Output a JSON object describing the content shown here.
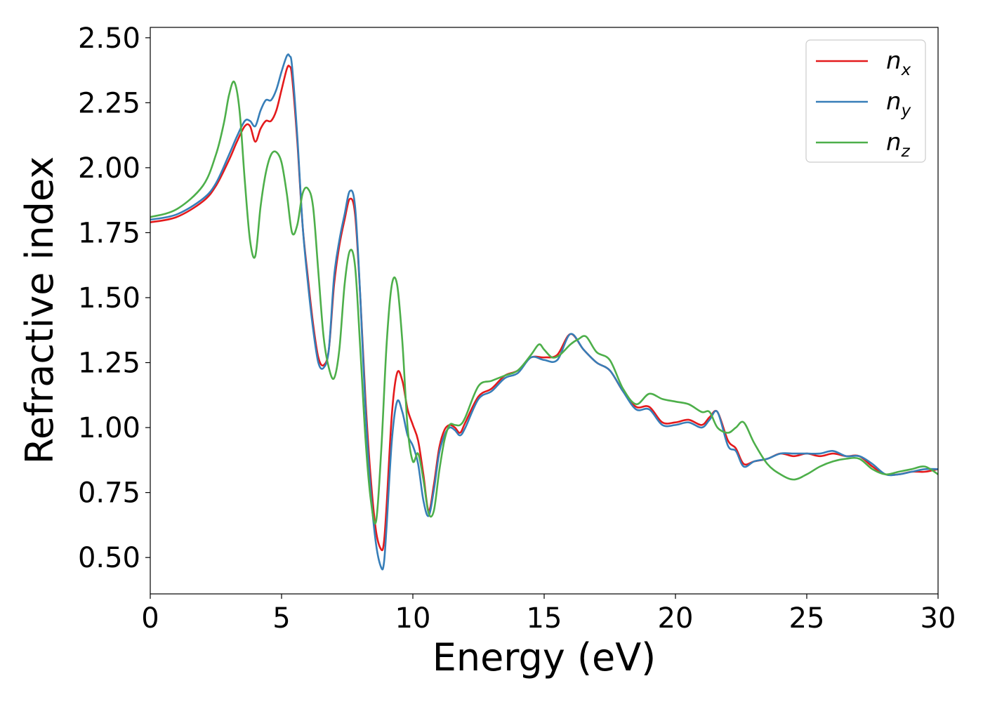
{
  "chart_data": {
    "type": "line",
    "xlabel": "Energy (eV)",
    "ylabel": "Refractive index",
    "xlim": [
      0,
      30
    ],
    "ylim": [
      0.36,
      2.54
    ],
    "xticks": [
      0,
      5,
      10,
      15,
      20,
      25,
      30
    ],
    "xtick_labels": [
      "0",
      "5",
      "10",
      "15",
      "20",
      "25",
      "30"
    ],
    "yticks": [
      0.5,
      0.75,
      1.0,
      1.25,
      1.5,
      1.75,
      2.0,
      2.25,
      2.5
    ],
    "ytick_labels": [
      "0.50",
      "0.75",
      "1.00",
      "1.25",
      "1.50",
      "1.75",
      "2.00",
      "2.25",
      "2.50"
    ],
    "grid": false,
    "legend_position": "top-right",
    "series": [
      {
        "name": "n_x",
        "label_base": "n",
        "label_sub": "x",
        "color": "#e41a1c",
        "x": [
          0,
          1,
          2,
          2.5,
          3,
          3.3,
          3.6,
          3.8,
          4.0,
          4.2,
          4.4,
          4.6,
          4.8,
          5.0,
          5.2,
          5.3,
          5.4,
          5.6,
          5.8,
          6.0,
          6.2,
          6.4,
          6.6,
          6.8,
          7.0,
          7.2,
          7.4,
          7.6,
          7.8,
          8.0,
          8.2,
          8.4,
          8.6,
          8.8,
          8.9,
          9.0,
          9.2,
          9.4,
          9.6,
          9.8,
          10.0,
          10.2,
          10.4,
          10.6,
          10.8,
          11.0,
          11.2,
          11.4,
          11.6,
          11.8,
          12.0,
          12.5,
          13.0,
          13.5,
          14.0,
          14.5,
          15.0,
          15.5,
          16.0,
          16.5,
          17.0,
          17.5,
          18.0,
          18.5,
          19.0,
          19.5,
          20.0,
          20.5,
          21.0,
          21.3,
          21.6,
          22.0,
          22.3,
          22.6,
          23.0,
          23.5,
          24.0,
          24.5,
          25.0,
          25.5,
          26.0,
          26.5,
          27.0,
          27.5,
          28.0,
          28.5,
          29.0,
          29.5,
          30.0
        ],
        "values": [
          1.79,
          1.81,
          1.87,
          1.93,
          2.03,
          2.1,
          2.16,
          2.16,
          2.1,
          2.15,
          2.18,
          2.18,
          2.22,
          2.3,
          2.38,
          2.39,
          2.35,
          2.1,
          1.78,
          1.58,
          1.4,
          1.27,
          1.24,
          1.3,
          1.55,
          1.7,
          1.8,
          1.88,
          1.82,
          1.5,
          1.1,
          0.8,
          0.6,
          0.53,
          0.56,
          0.7,
          1.05,
          1.21,
          1.18,
          1.07,
          1.01,
          0.95,
          0.82,
          0.68,
          0.78,
          0.92,
          0.99,
          1.01,
          1.0,
          0.98,
          1.02,
          1.12,
          1.15,
          1.2,
          1.22,
          1.27,
          1.27,
          1.28,
          1.36,
          1.3,
          1.25,
          1.22,
          1.14,
          1.08,
          1.08,
          1.02,
          1.02,
          1.03,
          1.01,
          1.04,
          1.06,
          0.95,
          0.92,
          0.86,
          0.87,
          0.88,
          0.9,
          0.89,
          0.9,
          0.89,
          0.9,
          0.89,
          0.89,
          0.85,
          0.82,
          0.82,
          0.83,
          0.83,
          0.84
        ]
      },
      {
        "name": "n_y",
        "label_base": "n",
        "label_sub": "y",
        "color": "#377eb8",
        "x": [
          0,
          1,
          2,
          2.5,
          3,
          3.3,
          3.6,
          3.8,
          4.0,
          4.2,
          4.4,
          4.6,
          4.8,
          5.0,
          5.2,
          5.3,
          5.4,
          5.6,
          5.8,
          6.0,
          6.2,
          6.4,
          6.6,
          6.8,
          7.0,
          7.2,
          7.4,
          7.6,
          7.8,
          8.0,
          8.2,
          8.4,
          8.6,
          8.8,
          8.9,
          9.0,
          9.2,
          9.4,
          9.6,
          9.8,
          10.0,
          10.2,
          10.4,
          10.6,
          10.8,
          11.0,
          11.2,
          11.4,
          11.6,
          11.8,
          12.0,
          12.5,
          13.0,
          13.5,
          14.0,
          14.5,
          15.0,
          15.5,
          16.0,
          16.5,
          17.0,
          17.5,
          18.0,
          18.5,
          19.0,
          19.5,
          20.0,
          20.5,
          21.0,
          21.3,
          21.6,
          22.0,
          22.3,
          22.6,
          23.0,
          23.5,
          24.0,
          24.5,
          25.0,
          25.5,
          26.0,
          26.5,
          27.0,
          27.5,
          28.0,
          28.5,
          29.0,
          29.5,
          30.0
        ],
        "values": [
          1.8,
          1.82,
          1.88,
          1.94,
          2.05,
          2.12,
          2.18,
          2.18,
          2.16,
          2.22,
          2.26,
          2.26,
          2.3,
          2.37,
          2.43,
          2.43,
          2.39,
          2.12,
          1.78,
          1.56,
          1.38,
          1.25,
          1.23,
          1.3,
          1.58,
          1.72,
          1.82,
          1.91,
          1.85,
          1.5,
          1.06,
          0.75,
          0.55,
          0.46,
          0.48,
          0.62,
          0.95,
          1.1,
          1.06,
          0.97,
          0.93,
          0.86,
          0.72,
          0.66,
          0.76,
          0.9,
          0.97,
          1.0,
          0.99,
          0.97,
          1.0,
          1.11,
          1.14,
          1.19,
          1.21,
          1.27,
          1.26,
          1.26,
          1.36,
          1.3,
          1.25,
          1.22,
          1.14,
          1.07,
          1.07,
          1.01,
          1.01,
          1.02,
          1.0,
          1.03,
          1.06,
          0.93,
          0.91,
          0.85,
          0.87,
          0.88,
          0.9,
          0.9,
          0.9,
          0.9,
          0.91,
          0.89,
          0.89,
          0.86,
          0.82,
          0.82,
          0.83,
          0.84,
          0.84
        ]
      },
      {
        "name": "n_z",
        "label_base": "n",
        "label_sub": "z",
        "color": "#4daf4a",
        "x": [
          0,
          1,
          2,
          2.5,
          2.8,
          3.0,
          3.2,
          3.4,
          3.6,
          3.8,
          4.0,
          4.2,
          4.4,
          4.6,
          4.8,
          5.0,
          5.2,
          5.4,
          5.6,
          5.8,
          6.0,
          6.2,
          6.4,
          6.6,
          6.8,
          7.0,
          7.2,
          7.4,
          7.6,
          7.8,
          8.0,
          8.2,
          8.4,
          8.6,
          8.8,
          9.0,
          9.2,
          9.4,
          9.6,
          9.8,
          10.0,
          10.2,
          10.4,
          10.6,
          10.8,
          11.0,
          11.2,
          11.4,
          11.6,
          11.8,
          12.0,
          12.5,
          13.0,
          13.5,
          14.0,
          14.5,
          14.8,
          15.0,
          15.3,
          15.6,
          16.0,
          16.3,
          16.6,
          17.0,
          17.5,
          18.0,
          18.5,
          19.0,
          19.5,
          20.0,
          20.5,
          21.0,
          21.3,
          21.6,
          22.0,
          22.3,
          22.6,
          23.0,
          23.5,
          24.0,
          24.5,
          25.0,
          25.5,
          26.0,
          26.5,
          27.0,
          27.5,
          28.0,
          28.5,
          29.0,
          29.5,
          30.0
        ],
        "values": [
          1.81,
          1.84,
          1.93,
          2.05,
          2.17,
          2.28,
          2.33,
          2.22,
          1.95,
          1.72,
          1.66,
          1.85,
          1.98,
          2.05,
          2.06,
          2.02,
          1.9,
          1.75,
          1.78,
          1.9,
          1.92,
          1.85,
          1.6,
          1.35,
          1.23,
          1.19,
          1.3,
          1.55,
          1.68,
          1.62,
          1.3,
          0.95,
          0.72,
          0.64,
          0.92,
          1.32,
          1.55,
          1.55,
          1.33,
          1.0,
          0.87,
          0.9,
          0.8,
          0.67,
          0.68,
          0.83,
          0.95,
          1.01,
          1.01,
          1.01,
          1.04,
          1.16,
          1.18,
          1.2,
          1.22,
          1.28,
          1.32,
          1.3,
          1.27,
          1.28,
          1.32,
          1.34,
          1.35,
          1.29,
          1.26,
          1.15,
          1.09,
          1.13,
          1.11,
          1.1,
          1.09,
          1.06,
          1.06,
          1.0,
          0.98,
          1.0,
          1.02,
          0.94,
          0.86,
          0.82,
          0.8,
          0.82,
          0.85,
          0.87,
          0.88,
          0.88,
          0.84,
          0.82,
          0.83,
          0.84,
          0.85,
          0.82
        ]
      }
    ]
  }
}
